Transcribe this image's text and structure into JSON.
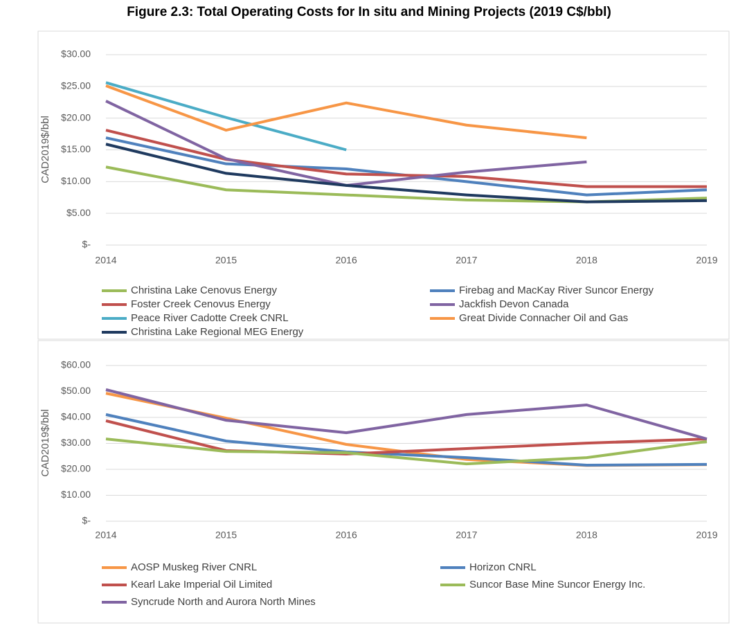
{
  "title": "Figure 2.3: Total Operating Costs for In situ and Mining Projects (2019 C$/bbl)",
  "chart_data": [
    {
      "type": "line",
      "y_label": "CAD2019$/bbl",
      "grid": true,
      "legend": "bottom",
      "x": [
        2014,
        2015,
        2016,
        2017,
        2018,
        2019
      ],
      "xlim": [
        2014,
        2019
      ],
      "xticks": [
        2014,
        2015,
        2016,
        2017,
        2018,
        2019
      ],
      "ylim": [
        0,
        30
      ],
      "yticks": [
        {
          "value": 0,
          "label": "$-"
        },
        {
          "value": 5,
          "label": "$5.00"
        },
        {
          "value": 10,
          "label": "$10.00"
        },
        {
          "value": 15,
          "label": "$15.00"
        },
        {
          "value": 20,
          "label": "$20.00"
        },
        {
          "value": 25,
          "label": "$25.00"
        },
        {
          "value": 30,
          "label": "$30.00"
        }
      ],
      "series": [
        {
          "name": "Christina Lake Cenovus Energy",
          "color": "#9bbb59",
          "values": [
            12.3,
            8.7,
            7.9,
            7.1,
            6.8,
            7.4
          ]
        },
        {
          "name": "Firebag and MacKay River Suncor Energy",
          "color": "#4f81bd",
          "values": [
            16.9,
            12.8,
            12.0,
            10.0,
            7.9,
            8.7
          ]
        },
        {
          "name": "Foster Creek Cenovus Energy",
          "color": "#c0504d",
          "values": [
            18.1,
            13.5,
            11.2,
            10.8,
            9.2,
            9.2
          ]
        },
        {
          "name": "Jackfish Devon Canada",
          "color": "#8064a2",
          "values": [
            22.7,
            13.6,
            9.4,
            11.5,
            13.1,
            null
          ]
        },
        {
          "name": "Peace River Cadotte Creek CNRL",
          "color": "#4bacc6",
          "values": [
            25.6,
            20.1,
            15.0,
            null,
            null,
            null
          ]
        },
        {
          "name": "Great Divide Connacher Oil and Gas",
          "color": "#f79646",
          "values": [
            25.1,
            18.1,
            22.4,
            18.9,
            16.9,
            null
          ]
        },
        {
          "name": "Christina Lake Regional MEG Energy",
          "color": "#1f3a5f",
          "values": [
            15.9,
            11.3,
            9.4,
            7.9,
            6.8,
            7.0
          ]
        }
      ]
    },
    {
      "type": "line",
      "y_label": "CAD2019$/bbl",
      "grid": true,
      "legend": "bottom",
      "x": [
        2014,
        2015,
        2016,
        2017,
        2018,
        2019
      ],
      "xlim": [
        2014,
        2019
      ],
      "xticks": [
        2014,
        2015,
        2016,
        2017,
        2018,
        2019
      ],
      "ylim": [
        0,
        60
      ],
      "yticks": [
        {
          "value": 0,
          "label": "$-"
        },
        {
          "value": 10,
          "label": "$10.00"
        },
        {
          "value": 20,
          "label": "$20.00"
        },
        {
          "value": 30,
          "label": "$30.00"
        },
        {
          "value": 40,
          "label": "$40.00"
        },
        {
          "value": 50,
          "label": "$50.00"
        },
        {
          "value": 60,
          "label": "$60.00"
        }
      ],
      "series": [
        {
          "name": "AOSP Muskeg River CNRL",
          "color": "#f79646",
          "values": [
            49.3,
            39.7,
            29.6,
            23.8,
            21.5,
            21.8
          ]
        },
        {
          "name": "Horizon CNRL",
          "color": "#4f81bd",
          "values": [
            41.1,
            30.9,
            26.7,
            24.5,
            21.6,
            21.9
          ]
        },
        {
          "name": "Kearl Lake Imperial Oil Limited",
          "color": "#c0504d",
          "values": [
            38.7,
            27.2,
            25.9,
            28.0,
            30.1,
            31.7
          ]
        },
        {
          "name": "Suncor Base Mine Suncor Energy Inc.",
          "color": "#9bbb59",
          "values": [
            31.7,
            26.9,
            26.4,
            22.1,
            24.5,
            30.7
          ]
        },
        {
          "name": "Syncrude North and Aurora North Mines",
          "color": "#8064a2",
          "values": [
            50.7,
            38.9,
            34.1,
            41.1,
            44.8,
            31.7
          ]
        }
      ]
    }
  ]
}
